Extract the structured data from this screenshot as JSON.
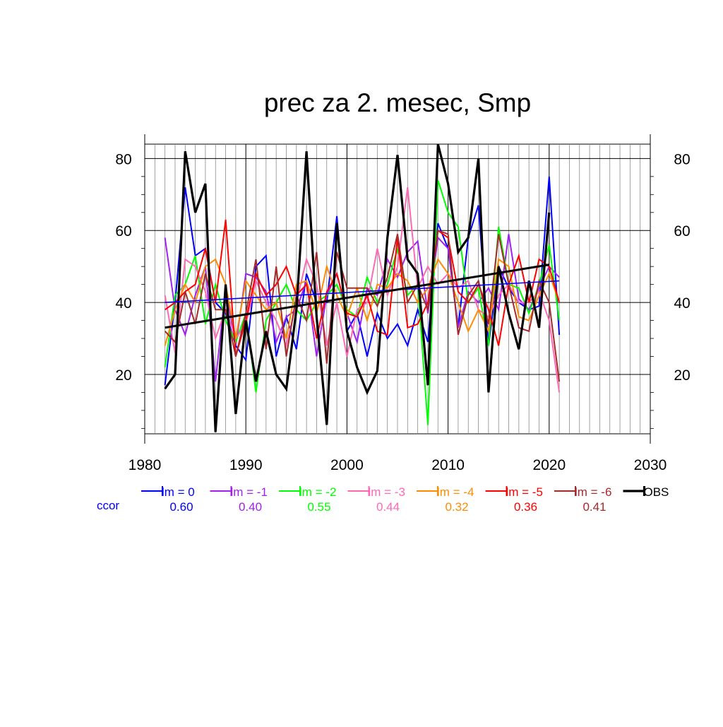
{
  "chart_data": {
    "type": "line",
    "title": "prec za 2. mesec, Smp",
    "xlabel": "",
    "ylabel": "",
    "xlim": [
      1980,
      2030
    ],
    "ylim": [
      3.5,
      84
    ],
    "x_ticks": [
      1980,
      1990,
      2000,
      2010,
      2020,
      2030
    ],
    "y_ticks": [
      20,
      40,
      60,
      80
    ],
    "grid": "on",
    "legend_position": "bottom",
    "ccor_label": "ccor",
    "x": [
      1982,
      1983,
      1984,
      1985,
      1986,
      1987,
      1988,
      1989,
      1990,
      1991,
      1992,
      1993,
      1994,
      1995,
      1996,
      1997,
      1998,
      1999,
      2000,
      2001,
      2002,
      2003,
      2004,
      2005,
      2006,
      2007,
      2008,
      2009,
      2010,
      2011,
      2012,
      2013,
      2014,
      2015,
      2016,
      2017,
      2018,
      2019,
      2020,
      2021
    ],
    "series": [
      {
        "name": "lm = 0",
        "ccor": "0.60",
        "color": "#0000ff",
        "values": [
          17,
          40,
          72,
          53,
          55,
          40,
          37,
          28,
          24,
          50,
          53,
          25,
          36,
          27,
          48,
          40,
          40,
          64,
          32,
          37,
          25,
          37,
          30,
          34,
          28,
          38,
          29,
          62,
          55,
          33,
          58,
          67,
          28,
          50,
          44,
          40,
          38,
          39,
          75,
          31
        ],
        "trend": [
          40,
          46
        ]
      },
      {
        "name": "lm = -1",
        "ccor": "0.40",
        "color": "#a020f0",
        "values": [
          58,
          38,
          31,
          42,
          50,
          18,
          44,
          28,
          48,
          47,
          43,
          29,
          36,
          38,
          46,
          25,
          42,
          48,
          37,
          29,
          44,
          42,
          52,
          47,
          54,
          57,
          37,
          58,
          55,
          33,
          43,
          40,
          44,
          38,
          59,
          41,
          38,
          44,
          50,
          47
        ]
      },
      {
        "name": "lm = -2",
        "ccor": "0.55",
        "color": "#00ff00",
        "values": [
          22,
          42,
          45,
          53,
          34,
          45,
          35,
          29,
          37,
          15,
          35,
          40,
          45,
          38,
          35,
          40,
          42,
          45,
          38,
          36,
          47,
          40,
          45,
          55,
          42,
          45,
          6,
          74,
          65,
          61,
          40,
          44,
          28,
          61,
          45,
          44,
          37,
          45,
          56,
          35
        ]
      },
      {
        "name": "lm = -3",
        "ccor": "0.44",
        "color": "#ff69b4",
        "values": [
          42,
          26,
          52,
          50,
          43,
          30,
          38,
          30,
          34,
          46,
          40,
          35,
          28,
          40,
          52,
          45,
          28,
          40,
          25,
          38,
          40,
          55,
          42,
          50,
          72,
          44,
          50,
          45,
          48,
          44,
          46,
          38,
          36,
          42,
          45,
          40,
          40,
          43,
          35,
          15
        ]
      },
      {
        "name": "lm = -4",
        "ccor": "0.32",
        "color": "#ff8c00",
        "values": [
          28,
          38,
          45,
          40,
          50,
          52,
          45,
          30,
          46,
          42,
          38,
          40,
          30,
          45,
          46,
          37,
          50,
          42,
          36,
          44,
          35,
          45,
          44,
          48,
          46,
          40,
          44,
          52,
          48,
          40,
          32,
          38,
          32,
          52,
          50,
          36,
          35,
          42,
          48,
          40
        ]
      },
      {
        "name": "lm = -5",
        "ccor": "0.36",
        "color": "#ff0000",
        "values": [
          38,
          40,
          43,
          45,
          55,
          40,
          63,
          25,
          35,
          48,
          42,
          45,
          50,
          42,
          45,
          30,
          43,
          48,
          37,
          36,
          42,
          32,
          31,
          58,
          33,
          34,
          40,
          60,
          58,
          43,
          40,
          45,
          38,
          28,
          45,
          53,
          40,
          52,
          50,
          40
        ]
      },
      {
        "name": "lm = -6",
        "ccor": "0.41",
        "color": "#a52a2a",
        "values": [
          32,
          29,
          43,
          34,
          48,
          38,
          38,
          25,
          37,
          52,
          27,
          50,
          25,
          42,
          35,
          54,
          23,
          54,
          44,
          44,
          44,
          39,
          47,
          59,
          40,
          45,
          38,
          60,
          59,
          31,
          42,
          46,
          34,
          59,
          45,
          33,
          32,
          46,
          40,
          18
        ]
      },
      {
        "name": "OBS",
        "ccor": "",
        "color": "#000000",
        "values": [
          16,
          20,
          82,
          65,
          73,
          4,
          45,
          9,
          35,
          18,
          32,
          20,
          16,
          38,
          82,
          36,
          6,
          62,
          32,
          22,
          15,
          21,
          58,
          81,
          52,
          48,
          17,
          84,
          73,
          54,
          58,
          80,
          15,
          50,
          37,
          27,
          46,
          33,
          65,
          null
        ],
        "trend": [
          33,
          50.5
        ]
      }
    ]
  }
}
